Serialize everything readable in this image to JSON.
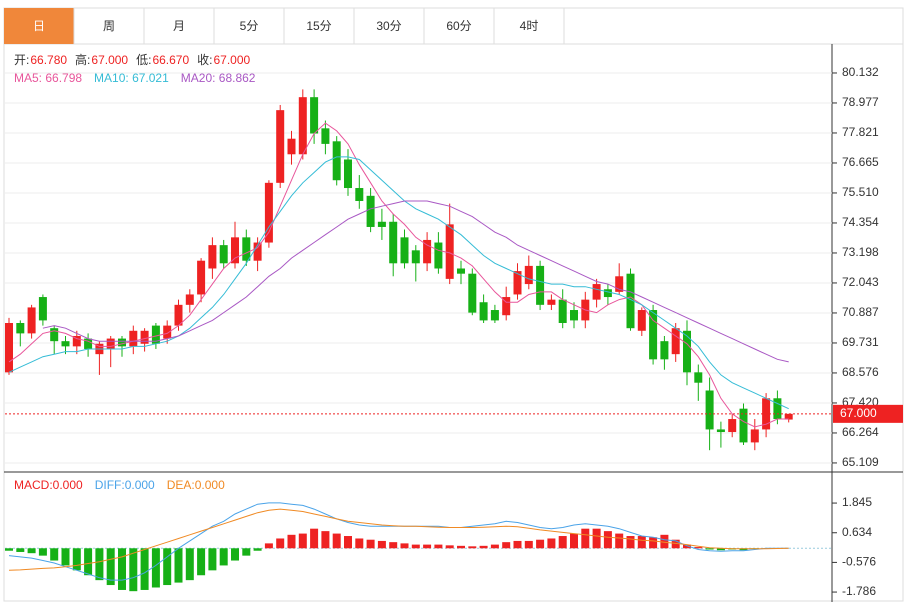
{
  "tabs": [
    "日",
    "周",
    "月",
    "5分",
    "15分",
    "30分",
    "60分",
    "4时"
  ],
  "chart_data": [
    {
      "type": "candlestick",
      "info": [
        {
          "label": "开:",
          "value": "66.780"
        },
        {
          "label": "高:",
          "value": "67.000"
        },
        {
          "label": "低:",
          "value": "66.670"
        },
        {
          "label": "收:",
          "value": "67.000"
        }
      ],
      "up_color": "#ee2222",
      "down_color": "#16b016",
      "ylim": [
        64.76,
        81.21
      ],
      "yticks": [
        80.132,
        78.977,
        77.821,
        76.665,
        {
          "value": 75.51,
          "label": "75.510"
        },
        74.354,
        73.198,
        72.043,
        70.887,
        69.731,
        68.576,
        {
          "value": 67.42,
          "label": "67.420"
        },
        66.264,
        65.109
      ],
      "grid": true,
      "last_price": {
        "value": 67,
        "label": "67.000",
        "color": "#ee2222"
      },
      "ohlc": [
        [
          68.6,
          70.7,
          68.5,
          70.5
        ],
        [
          70.5,
          70.6,
          69.6,
          70.1
        ],
        [
          70.1,
          71.2,
          69.9,
          71.1
        ],
        [
          71.5,
          71.6,
          70.4,
          70.6
        ],
        [
          70.3,
          70.4,
          69.3,
          69.8
        ],
        [
          69.8,
          70.0,
          69.3,
          69.6
        ],
        [
          69.6,
          70.2,
          69.3,
          70.0
        ],
        [
          69.9,
          70.1,
          69.2,
          69.5
        ],
        [
          69.3,
          69.8,
          68.5,
          69.7
        ],
        [
          69.5,
          70.0,
          68.8,
          69.9
        ],
        [
          69.9,
          70.0,
          69.2,
          69.6
        ],
        [
          69.6,
          70.4,
          69.3,
          70.2
        ],
        [
          69.7,
          70.3,
          69.4,
          70.2
        ],
        [
          70.4,
          70.5,
          69.5,
          69.7
        ],
        [
          69.9,
          70.6,
          69.7,
          70.4
        ],
        [
          70.4,
          71.4,
          70.2,
          71.2
        ],
        [
          71.2,
          71.8,
          70.9,
          71.6
        ],
        [
          71.6,
          73.0,
          71.3,
          72.9
        ],
        [
          72.6,
          73.8,
          72.2,
          73.5
        ],
        [
          73.5,
          73.7,
          72.6,
          72.8
        ],
        [
          72.8,
          74.4,
          72.6,
          73.8
        ],
        [
          73.8,
          74.1,
          72.7,
          72.9
        ],
        [
          72.9,
          73.8,
          72.5,
          73.6
        ],
        [
          73.6,
          76.0,
          73.4,
          75.9
        ],
        [
          75.9,
          78.9,
          75.7,
          78.7
        ],
        [
          77.0,
          77.9,
          76.6,
          77.6
        ],
        [
          77.0,
          79.5,
          76.8,
          79.2
        ],
        [
          79.2,
          79.5,
          77.4,
          77.8
        ],
        [
          78.0,
          78.3,
          77.0,
          77.4
        ],
        [
          77.5,
          77.7,
          75.8,
          76.0
        ],
        [
          76.8,
          77.2,
          75.4,
          75.7
        ],
        [
          75.7,
          76.2,
          74.9,
          75.2
        ],
        [
          75.4,
          75.7,
          74.0,
          74.2
        ],
        [
          74.4,
          74.9,
          73.7,
          74.2
        ],
        [
          74.4,
          74.7,
          72.3,
          72.8
        ],
        [
          73.8,
          74.1,
          72.6,
          72.8
        ],
        [
          73.3,
          73.5,
          72.1,
          72.8
        ],
        [
          72.8,
          74.0,
          72.5,
          73.7
        ],
        [
          73.6,
          74.0,
          72.4,
          72.6
        ],
        [
          72.2,
          75.1,
          72.0,
          74.3
        ],
        [
          72.6,
          72.9,
          72.0,
          72.4
        ],
        [
          72.4,
          72.6,
          70.8,
          70.9
        ],
        [
          71.3,
          71.6,
          70.5,
          70.6
        ],
        [
          71.0,
          71.2,
          70.5,
          70.6
        ],
        [
          70.8,
          71.9,
          70.6,
          71.5
        ],
        [
          71.6,
          72.8,
          71.4,
          72.5
        ],
        [
          72.0,
          73.1,
          71.8,
          72.7
        ],
        [
          72.7,
          72.9,
          71.0,
          71.2
        ],
        [
          71.2,
          71.6,
          71.0,
          71.4
        ],
        [
          71.4,
          71.8,
          70.3,
          70.5
        ],
        [
          71.0,
          71.3,
          70.3,
          70.6
        ],
        [
          70.6,
          71.7,
          70.3,
          71.4
        ],
        [
          71.4,
          72.2,
          71.1,
          72.0
        ],
        [
          71.8,
          72.0,
          71.2,
          71.5
        ],
        [
          71.7,
          72.8,
          71.6,
          72.3
        ],
        [
          72.4,
          72.6,
          70.2,
          70.3
        ],
        [
          70.2,
          71.1,
          70.0,
          71.0
        ],
        [
          71.0,
          71.2,
          68.9,
          69.1
        ],
        [
          69.8,
          70.0,
          68.7,
          69.1
        ],
        [
          69.3,
          70.5,
          69.0,
          70.3
        ],
        [
          70.2,
          70.6,
          68.1,
          68.6
        ],
        [
          68.6,
          68.9,
          67.5,
          68.2
        ],
        [
          67.9,
          68.4,
          65.6,
          66.4
        ],
        [
          66.4,
          66.7,
          65.7,
          66.3
        ],
        [
          66.3,
          67.0,
          66.1,
          66.8
        ],
        [
          67.2,
          67.4,
          65.8,
          65.9
        ],
        [
          65.9,
          66.8,
          65.6,
          66.4
        ],
        [
          66.4,
          67.8,
          66.1,
          67.6
        ],
        [
          67.6,
          67.9,
          66.6,
          66.8
        ],
        [
          66.78,
          67.0,
          66.67,
          67.0
        ]
      ],
      "series": [
        {
          "name": "MA5: 66.798",
          "color": "#e8569b",
          "values": [
            69.0,
            69.3,
            69.7,
            70.1,
            70.2,
            70.1,
            69.9,
            69.8,
            69.6,
            69.6,
            69.7,
            69.8,
            69.9,
            70.0,
            70.1,
            70.4,
            70.8,
            71.4,
            72.0,
            72.6,
            73.0,
            73.2,
            73.4,
            74.0,
            75.0,
            76.0,
            77.0,
            77.8,
            78.2,
            77.9,
            77.4,
            76.6,
            75.9,
            75.2,
            74.7,
            74.3,
            73.8,
            73.5,
            73.3,
            73.2,
            73.0,
            72.7,
            72.2,
            71.7,
            71.3,
            71.3,
            71.6,
            71.7,
            71.7,
            71.4,
            71.2,
            71.0,
            70.9,
            71.2,
            71.4,
            71.5,
            71.2,
            70.6,
            70.3,
            70.0,
            69.7,
            69.2,
            68.5,
            67.6,
            67.0,
            66.7,
            66.5,
            66.6,
            66.8,
            66.8
          ]
        },
        {
          "name": "MA10: 67.021",
          "color": "#35bcd6",
          "values": [
            68.6,
            68.8,
            69.0,
            69.2,
            69.3,
            69.4,
            69.4,
            69.5,
            69.5,
            69.5,
            69.5,
            69.6,
            69.6,
            69.7,
            69.8,
            70.0,
            70.3,
            70.7,
            71.1,
            71.6,
            72.2,
            72.8,
            73.5,
            74.2,
            74.8,
            75.4,
            75.9,
            76.3,
            76.7,
            76.9,
            76.9,
            76.8,
            76.4,
            76.0,
            75.6,
            75.2,
            74.9,
            74.7,
            74.5,
            74.2,
            73.9,
            73.5,
            73.1,
            72.8,
            72.6,
            72.4,
            72.2,
            72.1,
            72.0,
            72.0,
            71.9,
            71.9,
            71.8,
            71.7,
            71.6,
            71.4,
            71.2,
            70.9,
            70.6,
            70.3,
            70.0,
            69.6,
            69.0,
            68.5,
            68.2,
            68.0,
            67.8,
            67.6,
            67.4,
            67.2
          ]
        },
        {
          "name": "MA20: 68.862",
          "color": "#a958c4",
          "values": [
            null,
            null,
            null,
            70.3,
            70.4,
            70.3,
            70.1,
            69.9,
            69.8,
            69.8,
            69.8,
            69.8,
            69.8,
            69.8,
            69.9,
            70.0,
            70.2,
            70.4,
            70.6,
            70.9,
            71.2,
            71.5,
            71.9,
            72.3,
            72.6,
            73.0,
            73.3,
            73.6,
            73.9,
            74.2,
            74.5,
            74.7,
            74.9,
            75.0,
            75.1,
            75.2,
            75.2,
            75.2,
            75.1,
            75.0,
            74.8,
            74.6,
            74.3,
            74.0,
            73.8,
            73.5,
            73.3,
            73.1,
            72.9,
            72.7,
            72.5,
            72.3,
            72.1,
            72.0,
            71.8,
            71.7,
            71.5,
            71.3,
            71.1,
            70.9,
            70.7,
            70.5,
            70.3,
            70.1,
            69.9,
            69.7,
            69.5,
            69.3,
            69.1,
            69.0
          ]
        }
      ]
    },
    {
      "type": "macd",
      "ylim": [
        -2.11,
        2.99
      ],
      "yticks": [
        1.845,
        0.634,
        -0.576,
        -1.786
      ],
      "up_color": "#ee2222",
      "down_color": "#16b016",
      "series": [
        {
          "name": "MACD:0.000",
          "color": "#ee2222",
          "values": [
            -0.1,
            -0.15,
            -0.2,
            -0.3,
            -0.5,
            -0.7,
            -0.9,
            -1.1,
            -1.3,
            -1.5,
            -1.7,
            -1.75,
            -1.7,
            -1.6,
            -1.5,
            -1.4,
            -1.3,
            -1.1,
            -0.9,
            -0.7,
            -0.5,
            -0.3,
            -0.1,
            0.2,
            0.4,
            0.55,
            0.6,
            0.8,
            0.7,
            0.6,
            0.5,
            0.4,
            0.35,
            0.3,
            0.25,
            0.2,
            0.15,
            0.15,
            0.15,
            0.12,
            0.1,
            0.08,
            0.1,
            0.15,
            0.25,
            0.3,
            0.3,
            0.35,
            0.4,
            0.5,
            0.6,
            0.8,
            0.8,
            0.7,
            0.6,
            0.5,
            0.5,
            0.45,
            0.55,
            0.35,
            0.15,
            0.05,
            -0.05,
            -0.08,
            -0.05,
            -0.08,
            -0.02,
            0,
            0,
            0
          ]
        },
        {
          "name": "DIFF:0.000",
          "color": "#4aa3e8",
          "values": [
            -0.3,
            -0.35,
            -0.4,
            -0.5,
            -0.6,
            -0.75,
            -0.9,
            -1.05,
            -1.2,
            -1.3,
            -1.3,
            -1.2,
            -1.0,
            -0.7,
            -0.35,
            0,
            0.3,
            0.6,
            0.9,
            1.1,
            1.4,
            1.6,
            1.8,
            1.85,
            1.85,
            1.8,
            1.75,
            1.6,
            1.4,
            1.2,
            1.05,
            0.95,
            0.9,
            0.9,
            0.9,
            0.9,
            0.9,
            0.9,
            0.9,
            0.85,
            0.85,
            0.9,
            0.95,
            1.0,
            1.1,
            1.05,
            0.95,
            0.85,
            0.8,
            0.85,
            0.95,
            1.0,
            0.95,
            0.9,
            0.8,
            0.65,
            0.5,
            0.45,
            0.35,
            0.3,
            0.1,
            -0.05,
            -0.1,
            -0.12,
            -0.1,
            -0.1,
            -0.05,
            0,
            0,
            0
          ]
        },
        {
          "name": "DEA:0.000",
          "color": "#f08a24",
          "values": [
            -0.9,
            -0.88,
            -0.85,
            -0.82,
            -0.8,
            -0.75,
            -0.7,
            -0.62,
            -0.55,
            -0.45,
            -0.35,
            -0.2,
            -0.05,
            0.1,
            0.25,
            0.4,
            0.55,
            0.7,
            0.85,
            1.0,
            1.15,
            1.3,
            1.45,
            1.55,
            1.6,
            1.55,
            1.5,
            1.4,
            1.3,
            1.2,
            1.1,
            1.05,
            1.0,
            0.95,
            0.92,
            0.9,
            0.9,
            0.88,
            0.86,
            0.85,
            0.85,
            0.85,
            0.86,
            0.88,
            0.9,
            0.88,
            0.82,
            0.75,
            0.7,
            0.65,
            0.6,
            0.55,
            0.5,
            0.45,
            0.42,
            0.38,
            0.33,
            0.3,
            0.25,
            0.2,
            0.15,
            0.08,
            0.02,
            0,
            -0.02,
            -0.02,
            -0.02,
            -0.02,
            -0.01,
            0
          ]
        }
      ]
    }
  ]
}
